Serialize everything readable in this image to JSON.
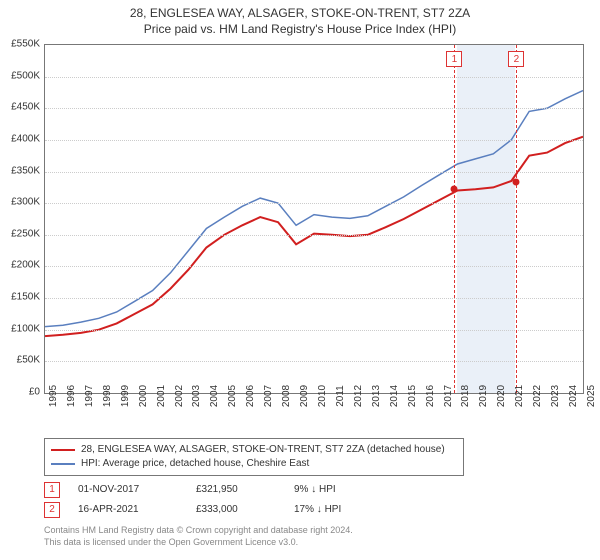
{
  "title": {
    "line1": "28, ENGLESEA WAY, ALSAGER, STOKE-ON-TRENT, ST7 2ZA",
    "line2": "Price paid vs. HM Land Registry's House Price Index (HPI)"
  },
  "chart": {
    "type": "line",
    "x_axis": {
      "min": 1995,
      "max": 2025,
      "ticks": [
        1995,
        1996,
        1997,
        1998,
        1999,
        2000,
        2001,
        2002,
        2003,
        2004,
        2005,
        2006,
        2007,
        2008,
        2009,
        2010,
        2011,
        2012,
        2013,
        2014,
        2015,
        2016,
        2017,
        2018,
        2019,
        2020,
        2021,
        2022,
        2023,
        2024,
        2025
      ],
      "label_fontsize": 10
    },
    "y_axis": {
      "min": 0,
      "max": 550000,
      "ticks": [
        0,
        50000,
        100000,
        150000,
        200000,
        250000,
        300000,
        350000,
        400000,
        450000,
        500000,
        550000
      ],
      "tick_labels": [
        "£0",
        "£50K",
        "£100K",
        "£150K",
        "£200K",
        "£250K",
        "£300K",
        "£350K",
        "£400K",
        "£450K",
        "£500K",
        "£550K"
      ],
      "label_fontsize": 10,
      "grid_color": "#cccccc"
    },
    "background_color": "#ffffff",
    "border_color": "#777777",
    "shade_band": {
      "x_start": 2018.0,
      "x_end": 2021.2,
      "color": "#eaf0f8"
    },
    "series": [
      {
        "id": "price_paid",
        "label": "28, ENGLESEA WAY, ALSAGER, STOKE-ON-TRENT, ST7 2ZA (detached house)",
        "color": "#d11f1f",
        "line_width": 2,
        "x": [
          1995,
          1996,
          1997,
          1998,
          1999,
          2000,
          2001,
          2002,
          2003,
          2004,
          2005,
          2006,
          2007,
          2008,
          2009,
          2010,
          2011,
          2012,
          2013,
          2014,
          2015,
          2016,
          2017,
          2018,
          2019,
          2020,
          2021,
          2022,
          2023,
          2024,
          2025
        ],
        "y": [
          90000,
          92000,
          95000,
          100000,
          110000,
          125000,
          140000,
          165000,
          195000,
          230000,
          250000,
          265000,
          278000,
          270000,
          235000,
          252000,
          250000,
          248000,
          250000,
          262000,
          275000,
          290000,
          305000,
          320000,
          322000,
          325000,
          335000,
          375000,
          380000,
          395000,
          405000
        ]
      },
      {
        "id": "hpi",
        "label": "HPI: Average price, detached house, Cheshire East",
        "color": "#5a7fbf",
        "line_width": 1.5,
        "x": [
          1995,
          1996,
          1997,
          1998,
          1999,
          2000,
          2001,
          2002,
          2003,
          2004,
          2005,
          2006,
          2007,
          2008,
          2009,
          2010,
          2011,
          2012,
          2013,
          2014,
          2015,
          2016,
          2017,
          2018,
          2019,
          2020,
          2021,
          2022,
          2023,
          2024,
          2025
        ],
        "y": [
          105000,
          107000,
          112000,
          118000,
          128000,
          145000,
          162000,
          190000,
          225000,
          260000,
          278000,
          295000,
          308000,
          300000,
          265000,
          282000,
          278000,
          276000,
          280000,
          295000,
          310000,
          328000,
          345000,
          362000,
          370000,
          378000,
          400000,
          445000,
          450000,
          465000,
          478000
        ]
      }
    ],
    "markers": [
      {
        "num": "1",
        "x": 2017.83,
        "y": 321950,
        "dot_color": "#d11f1f",
        "date": "01-NOV-2017",
        "price": "£321,950",
        "diff": "9% ↓ HPI"
      },
      {
        "num": "2",
        "x": 2021.29,
        "y": 333000,
        "dot_color": "#d11f1f",
        "date": "16-APR-2021",
        "price": "£333,000",
        "diff": "17% ↓ HPI"
      }
    ]
  },
  "footer": {
    "line1": "Contains HM Land Registry data © Crown copyright and database right 2024.",
    "line2": "This data is licensed under the Open Government Licence v3.0."
  }
}
